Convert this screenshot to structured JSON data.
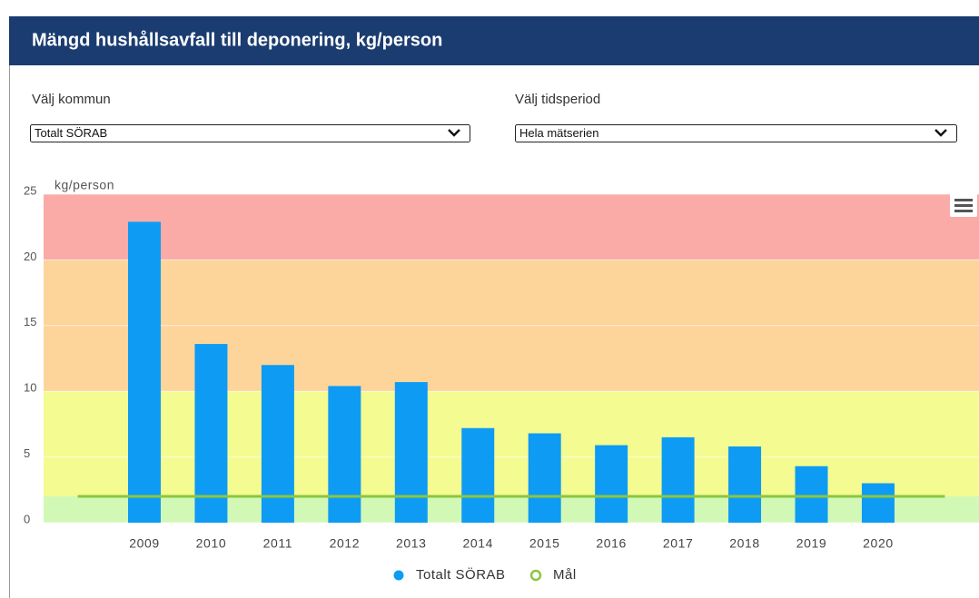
{
  "header": {
    "title": "Mängd hushållsavfall till deponering, kg/person"
  },
  "filters": [
    {
      "label": "Välj kommun",
      "selected": "Totalt SÖRAB"
    },
    {
      "label": "Välj tidsperiod",
      "selected": "Hela mätserien"
    }
  ],
  "chart_data": {
    "type": "bar",
    "y_axis_label": "kg/person",
    "categories": [
      "2009",
      "2010",
      "2011",
      "2012",
      "2013",
      "2014",
      "2015",
      "2016",
      "2017",
      "2018",
      "2019",
      "2020"
    ],
    "series": [
      {
        "name": "Totalt SÖRAB",
        "type": "bar",
        "color": "#0e9bf4",
        "values": [
          22.9,
          13.6,
          12.0,
          10.4,
          10.7,
          7.2,
          6.8,
          5.9,
          6.5,
          5.8,
          4.3,
          3.0
        ]
      },
      {
        "name": "Mål",
        "type": "line",
        "color": "#8cc63f",
        "values": [
          2,
          2,
          2,
          2,
          2,
          2,
          2,
          2,
          2,
          2,
          2,
          2
        ]
      }
    ],
    "ylim": [
      0,
      25
    ],
    "yticks": [
      0,
      5,
      10,
      15,
      20,
      25
    ],
    "grid": true,
    "plot_bands": [
      {
        "from": 0,
        "to": 2,
        "color": "#d2f8b6"
      },
      {
        "from": 2,
        "to": 10,
        "color": "#f4fb90"
      },
      {
        "from": 10,
        "to": 20,
        "color": "#fdd59b"
      },
      {
        "from": 20,
        "to": 25,
        "color": "#faaba8"
      }
    ],
    "legend": "bottom"
  }
}
